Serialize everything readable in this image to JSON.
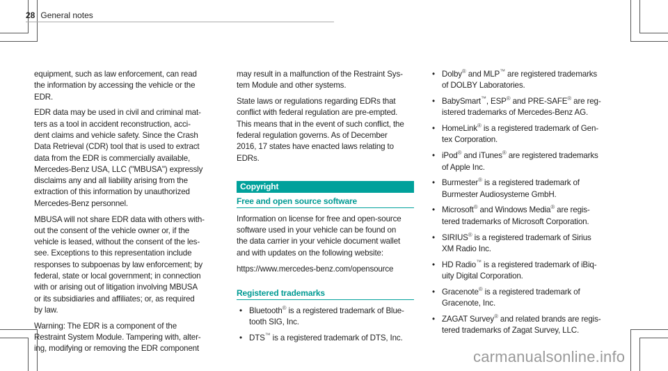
{
  "header": {
    "page_number": "28",
    "section": "General notes"
  },
  "left_column": [
    [
      "equipment, such as law enforcement, can read",
      "the information by accessing the vehicle or the",
      "EDR."
    ],
    [
      "EDR data may be used in civil and criminal mat-",
      "ters as a tool in accident reconstruction, acci-",
      "dent claims and vehicle safety. Since the Crash",
      "Data Retrieval (CDR) tool that is used to extract",
      "data from the EDR is commercially available,",
      "Mercedes-Benz USA, LLC (\"MBUSA\") expressly",
      "disclaims any and all liability arising from the",
      "extraction of this information by unauthorized",
      "Mercedes-Benz personnel."
    ],
    [
      "MBUSA will not share EDR data with others with-",
      "out the consent of the vehicle owner or, if the",
      "vehicle is leased, without the consent of the les-",
      "see. Exceptions to this representation include",
      "responses to subpoenas by law enforcement; by",
      "federal, state or local government; in connection",
      "with or arising out of litigation involving MBUSA",
      "or its subsidiaries and affiliates; or, as required",
      "by law."
    ],
    [
      "Warning: The EDR is a component of the",
      "Restraint System Module. Tampering with, alter-",
      "ing, modifying or removing the EDR component"
    ]
  ],
  "middle_column": {
    "paragraphs": [
      [
        "may result in a malfunction of the Restraint Sys-",
        "tem Module and other systems."
      ],
      [
        "State laws or regulations regarding EDRs that",
        "conflict with federal regulation are pre-empted.",
        "This means that in the event of such conflict, the",
        "federal regulation governs. As of December",
        "2016, 17 states have enacted laws relating to",
        "EDRs."
      ]
    ],
    "copyright_heading": "Copyright",
    "foss_heading": "Free and open source software",
    "foss_text": [
      "Information on license for free and open-source",
      "software used in your vehicle can be found on",
      "the data carrier in your vehicle document wallet",
      "and with updates on the following website:"
    ],
    "foss_url": "https://www.mercedes-benz.com/opensource",
    "trademarks_heading": "Registered trademarks",
    "trademarks": [
      [
        "Bluetooth® is a registered trademark of Blue-",
        "tooth SIG, Inc."
      ],
      [
        "DTS™ is a registered trademark of DTS, Inc."
      ]
    ]
  },
  "right_column": {
    "trademarks": [
      [
        "Dolby® and MLP™ are registered trademarks",
        "of DOLBY Laboratories."
      ],
      [
        "BabySmart™, ESP® and PRE-SAFE® are reg-",
        "istered trademarks of Mercedes-Benz AG."
      ],
      [
        "HomeLink® is a registered trademark of Gen-",
        "tex Corporation."
      ],
      [
        "iPod® and iTunes® are registered trademarks",
        "of Apple Inc."
      ],
      [
        "Burmester® is a registered trademark of",
        "Burmester Audiosysteme GmbH."
      ],
      [
        "Microsoft® and Windows Media® are regis-",
        "tered trademarks of Microsoft Corporation."
      ],
      [
        "SIRIUS® is a registered trademark of Sirius",
        "XM Radio Inc."
      ],
      [
        "HD Radio™ is a registered trademark of iBiq-",
        "uity Digital Corporation."
      ],
      [
        "Gracenote® is a registered trademark of",
        "Gracenote, Inc."
      ],
      [
        "ZAGAT Survey® and related brands are regis-",
        "tered trademarks of Zagat Survey, LLC."
      ]
    ]
  },
  "watermark": "carmanualsonline.info",
  "colors": {
    "accent": "#00A19B",
    "heading": "#009A93",
    "text": "#222222"
  }
}
